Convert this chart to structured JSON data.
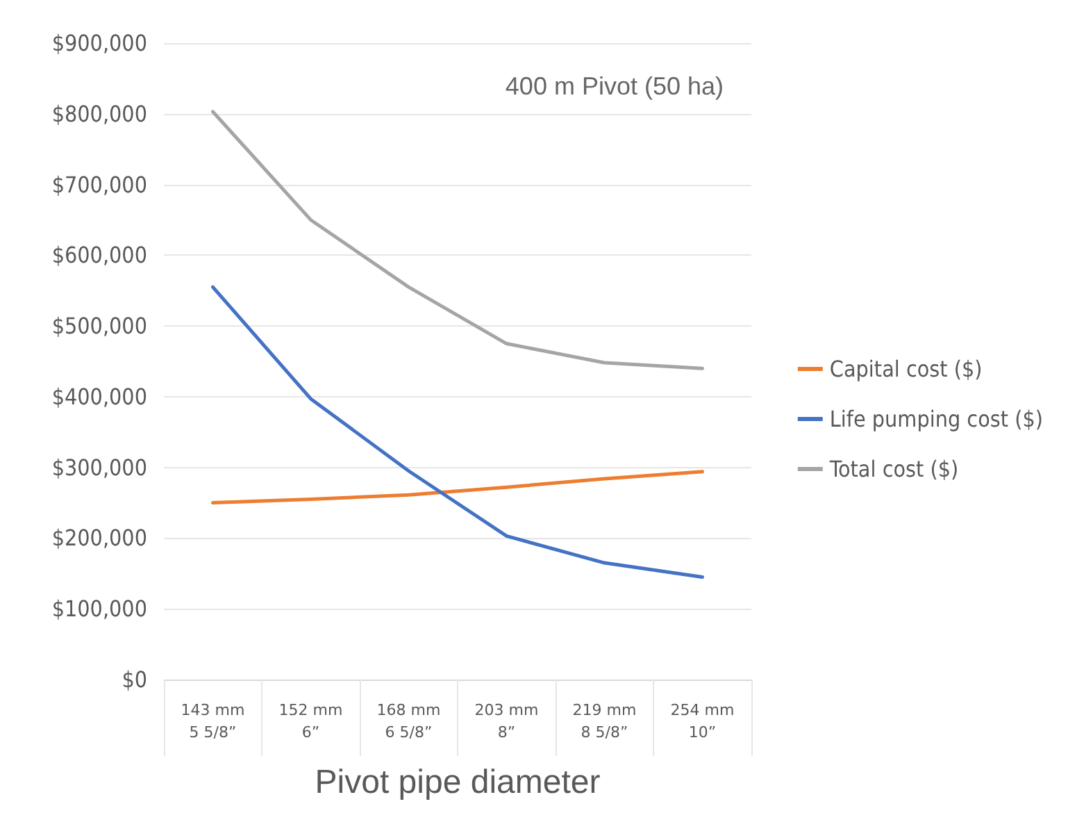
{
  "chart_data": {
    "type": "line",
    "title": "400 m Pivot (50 ha)",
    "xlabel": "Pivot pipe diameter",
    "categories": [
      "143 mm\n5 5/8”",
      "152 mm\n6”",
      "168 mm\n6 5/8”",
      "203 mm\n8”",
      "219 mm\n8 5/8”",
      "254 mm\n10”"
    ],
    "series": [
      {
        "name": "Capital cost ($)",
        "color": "#ed7d31",
        "values": [
          250000,
          255000,
          261000,
          272000,
          284000,
          294000
        ]
      },
      {
        "name": "Life pumping cost ($)",
        "color": "#4472c4",
        "values": [
          555000,
          397000,
          295000,
          203000,
          165000,
          145000
        ]
      },
      {
        "name": "Total cost ($)",
        "color": "#a5a5a5",
        "values": [
          803000,
          650000,
          555000,
          475000,
          448000,
          440000
        ]
      }
    ],
    "ylim": [
      0,
      900000
    ],
    "yticks": [
      {
        "value": 0,
        "label": "$0"
      },
      {
        "value": 100000,
        "label": "$100,000"
      },
      {
        "value": 200000,
        "label": "$200,000"
      },
      {
        "value": 300000,
        "label": "$300,000"
      },
      {
        "value": 400000,
        "label": "$400,000"
      },
      {
        "value": 500000,
        "label": "$500,000"
      },
      {
        "value": 600000,
        "label": "$600,000"
      },
      {
        "value": 700000,
        "label": "$700,000"
      },
      {
        "value": 800000,
        "label": "$800,000"
      },
      {
        "value": 900000,
        "label": "$900,000"
      }
    ],
    "grid": "y",
    "legend": "right",
    "marker": "none",
    "line_style": "solid"
  }
}
